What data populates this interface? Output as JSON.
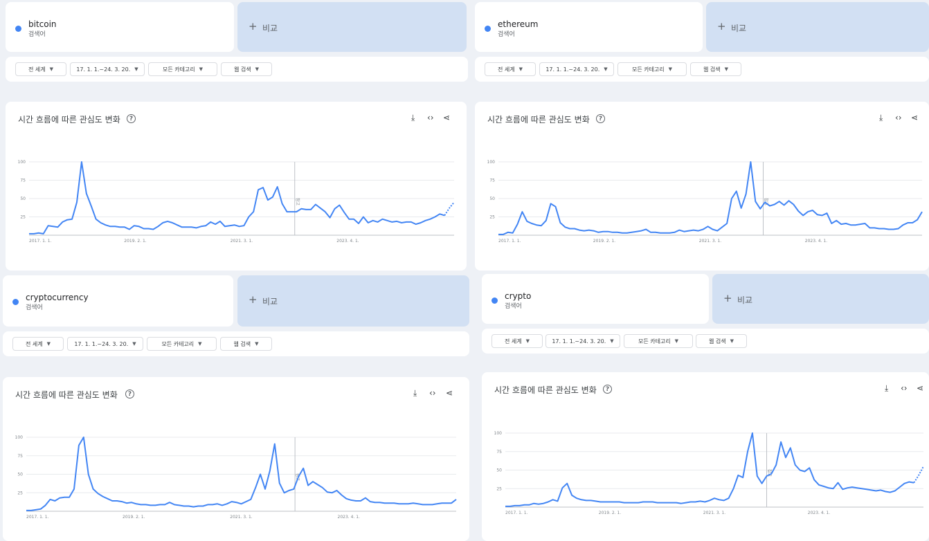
{
  "compare_label": "비교",
  "search_term_sub": "검색어",
  "filters": {
    "region": "전 세계",
    "date_range": "17. 1. 1.~24. 3. 20.",
    "category": "모든 카테고리",
    "search_type": "웹 검색"
  },
  "chart_section_title": "시간 흐름에 따른 관심도 변화",
  "icons": {
    "help": "help-circle-icon",
    "download": "download-icon",
    "embed": "code-icon",
    "share": "share-icon",
    "caret": "caret-down-icon",
    "plus": "plus-icon"
  },
  "colors": {
    "series": "#4285f4",
    "compare_bg": "#d2e0f3",
    "grid": "#e8eaed"
  },
  "panels": [
    {
      "term": "bitcoin",
      "chart_data": {
        "type": "line",
        "y_ticks": [
          "100",
          "75",
          "50",
          "25"
        ],
        "ylim": [
          0,
          100
        ],
        "x_ticks": [
          "2017. 1. 1.",
          "2019. 2. 1.",
          "2021. 3. 1.",
          "2023. 4. 1."
        ],
        "x_tick_positions": [
          0,
          25,
          50,
          75
        ],
        "annotation": "참고",
        "annotation_position": 62.5,
        "values": [
          2,
          2,
          3,
          2,
          13,
          12,
          11,
          18,
          21,
          22,
          45,
          100,
          57,
          40,
          22,
          17,
          14,
          12,
          12,
          11,
          11,
          8,
          13,
          12,
          9,
          9,
          8,
          12,
          17,
          19,
          17,
          14,
          11,
          11,
          11,
          10,
          12,
          13,
          18,
          15,
          19,
          12,
          13,
          14,
          12,
          13,
          25,
          32,
          62,
          65,
          48,
          52,
          66,
          43,
          32,
          32,
          32,
          36,
          35,
          35,
          42,
          37,
          32,
          24,
          36,
          41,
          31,
          22,
          22,
          16,
          25,
          17,
          20,
          18,
          22,
          20,
          18,
          19,
          17,
          18,
          18,
          15,
          17,
          20,
          22,
          25,
          29,
          27
        ],
        "partial_values": [
          27,
          37,
          45
        ]
      }
    },
    {
      "term": "ethereum",
      "chart_data": {
        "type": "line",
        "y_ticks": [
          "100",
          "75",
          "50",
          "25"
        ],
        "ylim": [
          0,
          100
        ],
        "x_ticks": [
          "2017. 1. 1.",
          "2019. 2. 1.",
          "2021. 3. 1.",
          "2023. 4. 1."
        ],
        "x_tick_positions": [
          0,
          25,
          50,
          75
        ],
        "annotation": "참고",
        "annotation_position": 62.5,
        "values": [
          1,
          1,
          4,
          3,
          15,
          32,
          19,
          16,
          14,
          13,
          20,
          43,
          39,
          17,
          11,
          9,
          9,
          7,
          6,
          7,
          6,
          4,
          5,
          5,
          4,
          4,
          3,
          3,
          4,
          5,
          6,
          8,
          4,
          4,
          3,
          3,
          3,
          4,
          7,
          5,
          6,
          7,
          6,
          8,
          12,
          8,
          6,
          11,
          16,
          50,
          60,
          37,
          56,
          100,
          46,
          36,
          45,
          40,
          42,
          46,
          41,
          47,
          42,
          33,
          27,
          32,
          34,
          28,
          27,
          30,
          16,
          20,
          15,
          16,
          14,
          14,
          15,
          16,
          10,
          10,
          9,
          9,
          8,
          8,
          9,
          14,
          17,
          17,
          21,
          32
        ],
        "partial_values": []
      }
    },
    {
      "term": "cryptocurrency",
      "chart_data": {
        "type": "line",
        "y_ticks": [
          "100",
          "75",
          "50",
          "25"
        ],
        "ylim": [
          0,
          100
        ],
        "x_ticks": [
          "2017. 1. 1.",
          "2019. 2. 1.",
          "2021. 3. 1.",
          "2023. 4. 1."
        ],
        "x_tick_positions": [
          0,
          25,
          50,
          75
        ],
        "annotation": "참고",
        "annotation_position": 62.5,
        "values": [
          1,
          1,
          2,
          3,
          8,
          16,
          14,
          18,
          19,
          19,
          30,
          89,
          100,
          50,
          30,
          24,
          20,
          17,
          14,
          14,
          13,
          11,
          12,
          10,
          9,
          9,
          8,
          8,
          9,
          9,
          12,
          9,
          8,
          7,
          7,
          6,
          7,
          7,
          9,
          9,
          10,
          8,
          10,
          13,
          12,
          10,
          13,
          16,
          32,
          50,
          30,
          55,
          91,
          38,
          25,
          28,
          30,
          47,
          58,
          35,
          40,
          36,
          32,
          26,
          25,
          28,
          22,
          17,
          15,
          14,
          14,
          18,
          13,
          12,
          12,
          11,
          11,
          11,
          10,
          10,
          10,
          11,
          10,
          9,
          9,
          9,
          10,
          11,
          11,
          11,
          16
        ],
        "partial_values": []
      }
    },
    {
      "term": "crypto",
      "chart_data": {
        "type": "line",
        "y_ticks": [
          "100",
          "75",
          "50",
          "25"
        ],
        "ylim": [
          0,
          100
        ],
        "x_ticks": [
          "2017. 1. 1.",
          "2019. 2. 1.",
          "2021. 3. 1.",
          "2023. 4. 1."
        ],
        "x_tick_positions": [
          0,
          25,
          50,
          75
        ],
        "annotation": "참고",
        "annotation_position": 62.5,
        "values": [
          1,
          1,
          2,
          2,
          3,
          3,
          5,
          4,
          5,
          7,
          10,
          8,
          26,
          32,
          16,
          12,
          10,
          9,
          9,
          8,
          7,
          7,
          7,
          7,
          7,
          6,
          6,
          6,
          6,
          7,
          7,
          7,
          6,
          6,
          6,
          6,
          6,
          5,
          6,
          7,
          7,
          8,
          7,
          9,
          12,
          10,
          9,
          12,
          25,
          43,
          40,
          75,
          100,
          42,
          32,
          42,
          45,
          57,
          88,
          67,
          80,
          57,
          50,
          48,
          53,
          37,
          30,
          28,
          26,
          25,
          33,
          24,
          26,
          27,
          26,
          25,
          24,
          23,
          22,
          23,
          21,
          20,
          22,
          27,
          32,
          34,
          33
        ],
        "partial_values": [
          33,
          43,
          55
        ]
      }
    }
  ]
}
